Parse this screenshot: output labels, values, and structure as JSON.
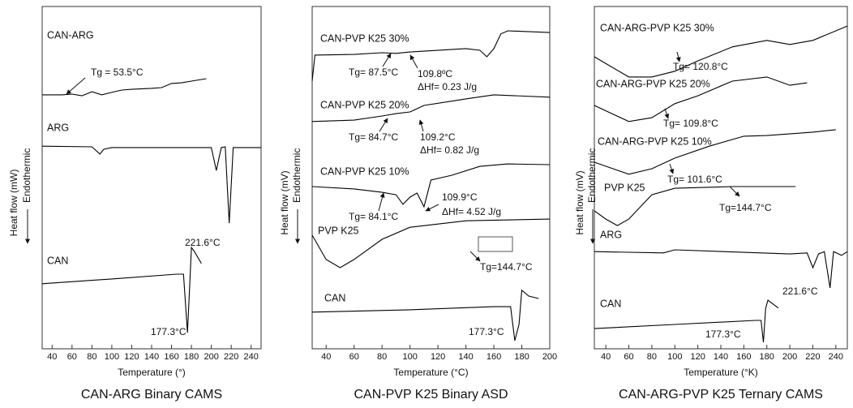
{
  "chart_data": [
    {
      "type": "line",
      "caption": "CAN-ARG Binary CAMS",
      "xlabel": "Temperature (°)",
      "ylabel": "Heat flow (mW)",
      "y_note": "Endothermic",
      "xlim": [
        30,
        250
      ],
      "xticks": [
        40,
        60,
        80,
        100,
        120,
        140,
        160,
        180,
        200,
        220,
        240
      ],
      "ylim": [
        0,
        100
      ],
      "series": [
        {
          "name": "CAN-ARG",
          "color": "#000000",
          "x": [
            30,
            50,
            60,
            70,
            80,
            90,
            100,
            110,
            120,
            140,
            150,
            160,
            170,
            180,
            195
          ],
          "values": [
            74.2,
            74.2,
            74.4,
            73.9,
            75.1,
            74.2,
            74.9,
            75.6,
            75.8,
            76.1,
            76.3,
            77.5,
            77.7,
            78.2,
            78.9
          ]
        },
        {
          "name": "ARG",
          "color": "#000000",
          "x": [
            30,
            80,
            88,
            92,
            100,
            200,
            205,
            210,
            214,
            218,
            222,
            250
          ],
          "values": [
            59.2,
            59.0,
            56.9,
            58.3,
            58.8,
            58.8,
            52.1,
            58.8,
            59.0,
            36.7,
            58.8,
            58.8
          ]
        },
        {
          "name": "CAN",
          "color": "#000000",
          "x": [
            30,
            100,
            165,
            172,
            176,
            178,
            180,
            183,
            190
          ],
          "values": [
            19.0,
            20.4,
            21.8,
            21.8,
            4.7,
            16.6,
            29.6,
            28.4,
            24.9
          ]
        }
      ],
      "annotations": [
        "Tg = 53.5°C",
        "221.6°C",
        "177.3°C"
      ]
    },
    {
      "type": "line",
      "caption": "CAN-PVP K25 Binary ASD",
      "xlabel": "Temperature (°C)",
      "ylabel": "Heat flow (mV)",
      "y_note": "Endothermic",
      "xlim": [
        30,
        200
      ],
      "xticks": [
        40,
        60,
        80,
        100,
        120,
        140,
        160,
        180,
        200
      ],
      "ylim": [
        0,
        100
      ],
      "series": [
        {
          "name": "CAN-PVP K25 30%",
          "color": "#000000",
          "x": [
            30,
            32,
            60,
            80,
            90,
            100,
            140,
            150,
            155,
            160,
            165,
            170,
            200
          ],
          "values": [
            78.2,
            85.8,
            86.0,
            86.5,
            86.3,
            86.7,
            87.7,
            87.2,
            85.3,
            87.7,
            92.0,
            92.9,
            92.4
          ]
        },
        {
          "name": "CAN-PVP K25 20%",
          "color": "#000000",
          "x": [
            30,
            60,
            80,
            90,
            100,
            110,
            140,
            160,
            200
          ],
          "values": [
            66.4,
            66.8,
            68.0,
            68.7,
            69.2,
            71.1,
            73.0,
            74.2,
            73.5
          ]
        },
        {
          "name": "CAN-PVP K25 10%",
          "color": "#000000",
          "x": [
            30,
            60,
            80,
            90,
            95,
            100,
            105,
            110,
            115,
            130,
            150,
            170,
            200
          ],
          "values": [
            47.4,
            46.7,
            45.7,
            45.0,
            42.2,
            44.3,
            45.5,
            41.5,
            49.3,
            50.7,
            53.3,
            54.0,
            53.8
          ]
        },
        {
          "name": "PVP K25",
          "color": "#000000",
          "x": [
            30,
            40,
            50,
            60,
            80,
            100,
            140,
            200
          ],
          "values": [
            33.2,
            26.1,
            23.7,
            26.1,
            32.0,
            35.5,
            37.4,
            37.9
          ]
        },
        {
          "name": "CAN",
          "color": "#000000",
          "x": [
            30,
            100,
            160,
            172,
            175,
            178,
            180,
            185,
            192
          ],
          "values": [
            10.7,
            11.4,
            12.3,
            12.3,
            2.4,
            7.1,
            17.1,
            15.4,
            14.7
          ]
        }
      ],
      "annotations": [
        "Tg= 87.5°C",
        "109.8ºC",
        "ΔHf= 0.23 J/g",
        "Tg= 84.7°C",
        "109.2°C",
        "ΔHf= 0.82 J/g",
        "Tg= 84.1°C",
        "109.9°C",
        "ΔHf= 4.52 J/g",
        "Tg=144.7°C",
        "177.3°C"
      ]
    },
    {
      "type": "line",
      "caption": "CAN-ARG-PVP K25 Ternary CAMS",
      "xlabel": "Temperature (°K)",
      "ylabel": "Heat flow (mV)",
      "y_note": "Endothermic",
      "xlim": [
        30,
        250
      ],
      "xticks": [
        40,
        60,
        80,
        100,
        120,
        140,
        160,
        180,
        200,
        220,
        240
      ],
      "ylim": [
        0,
        100
      ],
      "series": [
        {
          "name": "CAN-ARG-PVP K25 30%",
          "color": "#000000",
          "x": [
            30,
            60,
            80,
            100,
            120,
            150,
            180,
            200,
            220,
            250
          ],
          "values": [
            85.3,
            79.4,
            79.4,
            81.1,
            84.1,
            88.2,
            90.1,
            88.9,
            90.1,
            94.3
          ]
        },
        {
          "name": "CAN-ARG-PVP K25 20%",
          "color": "#000000",
          "x": [
            30,
            60,
            80,
            100,
            120,
            150,
            180,
            200,
            215
          ],
          "values": [
            71.1,
            66.4,
            67.5,
            71.6,
            73.9,
            78.2,
            79.4,
            77.0,
            77.7
          ]
        },
        {
          "name": "CAN-ARG-PVP K25 10%",
          "color": "#000000",
          "x": [
            30,
            60,
            80,
            100,
            130,
            160,
            180,
            220,
            240
          ],
          "values": [
            54.5,
            51.0,
            52.6,
            55.7,
            59.2,
            62.1,
            62.3,
            63.3,
            64.0
          ]
        },
        {
          "name": "PVP K25",
          "color": "#000000",
          "x": [
            30,
            40,
            50,
            60,
            80,
            100,
            150,
            205
          ],
          "values": [
            40.3,
            37.9,
            36.0,
            37.9,
            45.0,
            46.9,
            47.4,
            47.4
          ]
        },
        {
          "name": "ARG",
          "color": "#000000",
          "x": [
            30,
            90,
            100,
            200,
            215,
            220,
            225,
            230,
            235,
            238,
            245,
            250
          ],
          "values": [
            28.4,
            28.0,
            28.9,
            27.7,
            28.0,
            23.7,
            27.7,
            28.4,
            17.8,
            28.4,
            27.3,
            28.4
          ]
        },
        {
          "name": "CAN",
          "color": "#000000",
          "x": [
            30,
            100,
            170,
            175,
            177,
            179,
            181,
            190
          ],
          "values": [
            5.9,
            7.1,
            8.3,
            8.3,
            1.9,
            11.9,
            14.2,
            11.9
          ]
        }
      ],
      "annotations": [
        "Tg= 120.8°C",
        "Tg= 109.8°C",
        "Tg= 101.6°C",
        "Tg=144.7°C",
        "221.6°C",
        "177.3°C"
      ]
    }
  ]
}
